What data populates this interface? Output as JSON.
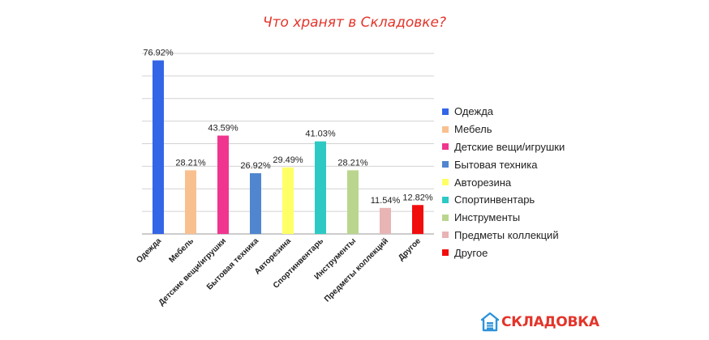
{
  "chart_data": {
    "type": "bar",
    "title": "Что хранят в Складовке?",
    "categories": [
      "Одежда",
      "Мебель",
      "Детские вещи/игрушки",
      "Бытовая техника",
      "Авторезина",
      "Спортинвентарь",
      "Инструменты",
      "Предметы коллекций",
      "Другое"
    ],
    "values": [
      76.92,
      28.21,
      43.59,
      26.92,
      29.49,
      41.03,
      28.21,
      11.54,
      12.82
    ],
    "value_labels": [
      "76.92%",
      "28.21%",
      "43.59%",
      "26.92%",
      "29.49%",
      "41.03%",
      "28.21%",
      "11.54%",
      "12.82%"
    ],
    "colors": [
      "#3366e6",
      "#f9c08f",
      "#f0358f",
      "#4f86cf",
      "#ffff66",
      "#2ec9c4",
      "#bad68e",
      "#e8b4b4",
      "#f20d0d"
    ],
    "ylim": [
      0,
      80
    ],
    "grid": true,
    "legend": "right",
    "xlabel": "",
    "ylabel": ""
  },
  "legend": {
    "items": [
      {
        "label": "Одежда",
        "color": "#3366e6"
      },
      {
        "label": "Мебель",
        "color": "#f9c08f"
      },
      {
        "label": "Детские вещи/игрушки",
        "color": "#f0358f"
      },
      {
        "label": "Бытовая техника",
        "color": "#4f86cf"
      },
      {
        "label": "Авторезина",
        "color": "#ffff66"
      },
      {
        "label": "Спортинвентарь",
        "color": "#2ec9c4"
      },
      {
        "label": "Инструменты",
        "color": "#bad68e"
      },
      {
        "label": "Предметы коллекций",
        "color": "#e8b4b4"
      },
      {
        "label": "Другое",
        "color": "#f20d0d"
      }
    ]
  },
  "brand": {
    "name": "СКЛАДОВКА",
    "color": "#e3342a"
  }
}
